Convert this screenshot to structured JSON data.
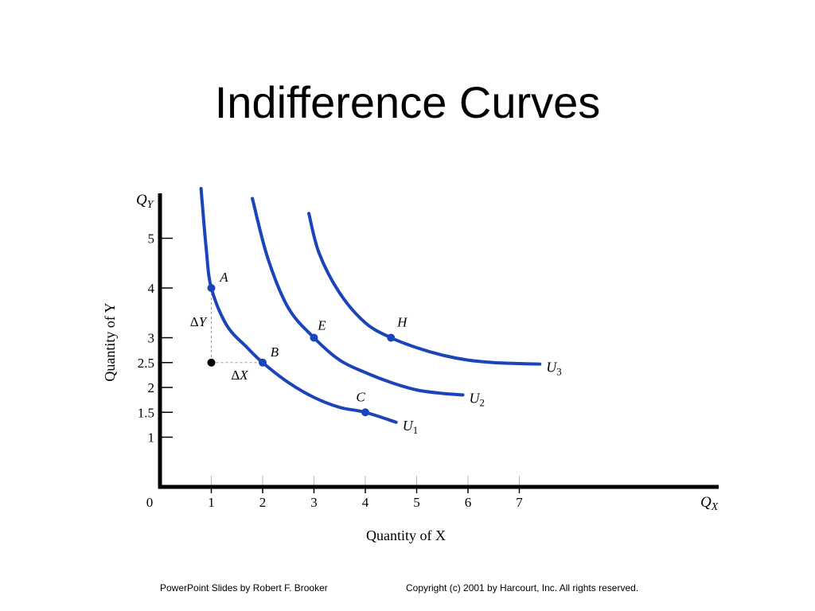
{
  "slide": {
    "title": "Indifference Curves",
    "footer_left": "PowerPoint Slides by Robert F. Brooker",
    "footer_right": "Copyright (c) 2001 by Harcourt, Inc. All rights reserved."
  },
  "chart_data": {
    "type": "line",
    "xlabel": "Quantity of X",
    "ylabel": "Quantity of Y",
    "x_axis_symbol": "Q",
    "x_axis_subscript": "X",
    "y_axis_symbol": "Q",
    "y_axis_subscript": "Y",
    "origin_label": "0",
    "xlim": [
      0,
      10.8
    ],
    "ylim": [
      0,
      6
    ],
    "x_ticks": [
      1,
      2,
      3,
      4,
      5,
      6,
      7
    ],
    "y_ticks": [
      1,
      1.5,
      2,
      2.5,
      3,
      4,
      5
    ],
    "y_tick_labels": [
      "1",
      "1.5",
      "2",
      "2.5",
      "3",
      "4",
      "5"
    ],
    "curve_color": "#1a44b8",
    "series": [
      {
        "name": "U",
        "subscript": "1",
        "x": [
          0.8,
          0.9,
          1.0,
          1.3,
          1.7,
          2.0,
          2.5,
          3.0,
          3.5,
          4.0,
          4.6
        ],
        "y": [
          6.0,
          4.8,
          4.0,
          3.25,
          2.8,
          2.5,
          2.1,
          1.8,
          1.6,
          1.5,
          1.3
        ],
        "points": [
          {
            "label": "A",
            "x": 1,
            "y": 4
          },
          {
            "label": "B",
            "x": 2,
            "y": 2.5
          },
          {
            "label": "C",
            "x": 4,
            "y": 1.5
          }
        ]
      },
      {
        "name": "U",
        "subscript": "2",
        "x": [
          1.8,
          2.1,
          2.5,
          3.0,
          3.5,
          4.0,
          4.5,
          5.0,
          5.5,
          5.9
        ],
        "y": [
          5.8,
          4.6,
          3.6,
          3.0,
          2.55,
          2.3,
          2.1,
          1.95,
          1.88,
          1.85
        ],
        "points": [
          {
            "label": "E",
            "x": 3,
            "y": 3
          }
        ]
      },
      {
        "name": "U",
        "subscript": "3",
        "x": [
          2.9,
          3.1,
          3.5,
          4.0,
          4.5,
          5.0,
          5.5,
          6.0,
          6.5,
          7.0,
          7.4
        ],
        "y": [
          5.5,
          4.7,
          3.9,
          3.3,
          3.0,
          2.8,
          2.65,
          2.55,
          2.5,
          2.48,
          2.47
        ],
        "points": [
          {
            "label": "H",
            "x": 4.5,
            "y": 3
          }
        ]
      }
    ],
    "annotations": {
      "black_point": {
        "x": 1,
        "y": 2.5
      },
      "delta_y_label": "ΔY",
      "delta_x_label": "ΔX"
    }
  }
}
